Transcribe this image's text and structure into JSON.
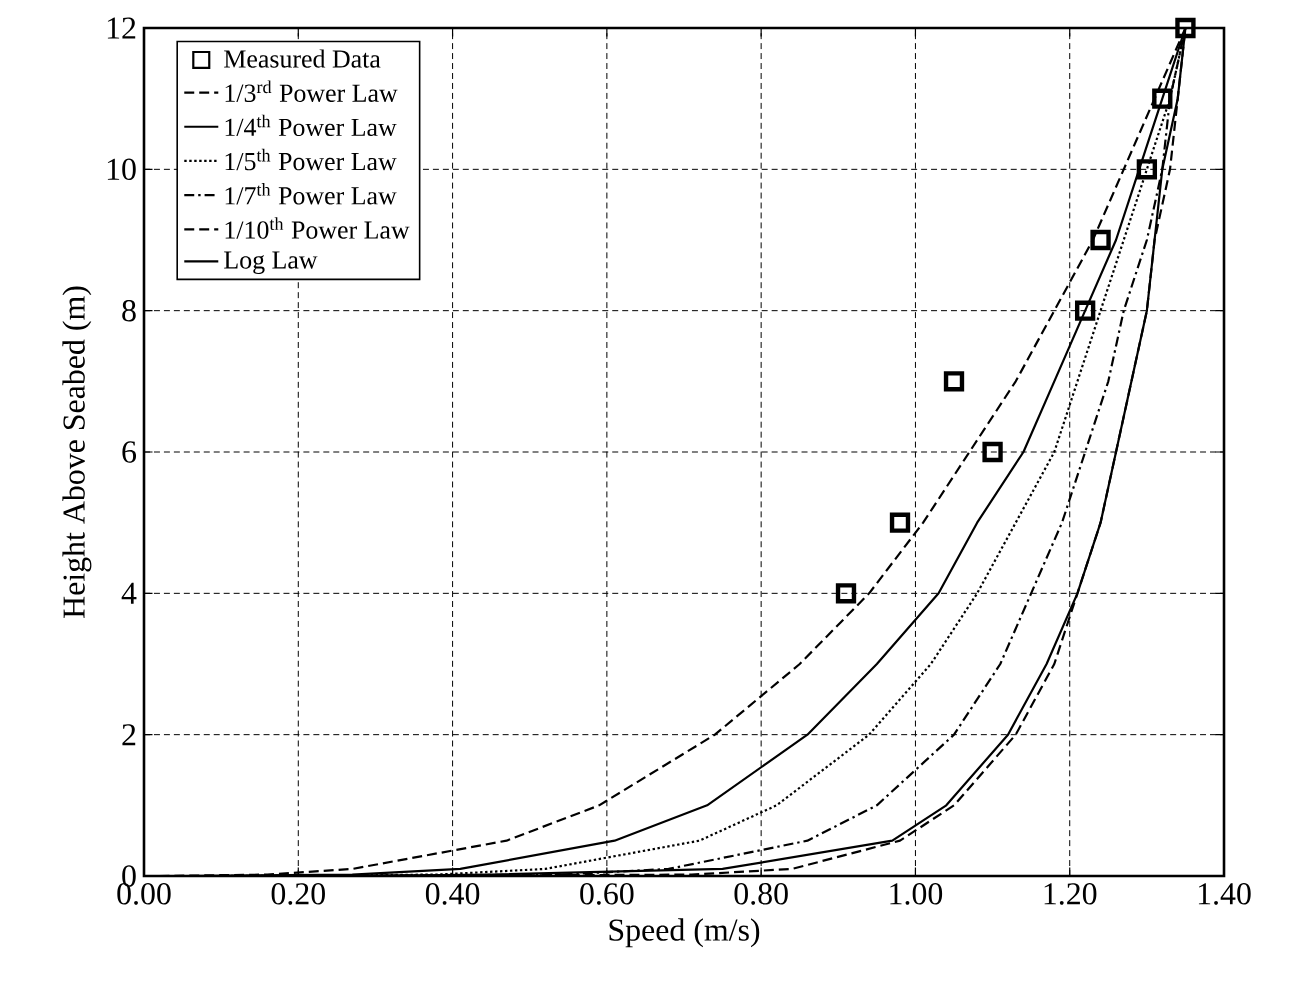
{
  "chart_data": {
    "type": "line",
    "xlabel": "Speed (m/s)",
    "ylabel": "Height Above Seabed (m)",
    "xlim": [
      0,
      1.4
    ],
    "ylim": [
      0,
      12
    ],
    "xticks": [
      {
        "value": 0,
        "label": "0.00"
      },
      {
        "value": 0.2,
        "label": "0.20"
      },
      {
        "value": 0.4,
        "label": "0.40"
      },
      {
        "value": 0.6,
        "label": "0.60"
      },
      {
        "value": 0.8,
        "label": "0.80"
      },
      {
        "value": 1.0,
        "label": "1.00"
      },
      {
        "value": 1.2,
        "label": "1.20"
      },
      {
        "value": 1.4,
        "label": "1.40"
      }
    ],
    "yticks": [
      0,
      2,
      4,
      6,
      8,
      10,
      12
    ],
    "grid": true,
    "legend": "top left",
    "series": [
      {
        "name": "Measured Data",
        "type": "scatter",
        "marker": "square",
        "color": "#000000",
        "x": [
          0.91,
          0.98,
          1.05,
          1.1,
          1.22,
          1.24,
          1.3,
          1.32,
          1.35
        ],
        "values": [
          4,
          5,
          7,
          6,
          8,
          9,
          10,
          11,
          12
        ]
      },
      {
        "name": "1/3$^{rd}$ Power Law",
        "line_style": "dashed",
        "color": "#000000",
        "x": [
          0.02,
          0.16,
          0.27,
          0.47,
          0.59,
          0.74,
          0.85,
          0.94,
          1.01,
          1.07,
          1.13,
          1.18,
          1.23,
          1.27,
          1.31,
          1.35
        ],
        "values": [
          0,
          0.02,
          0.1,
          0.5,
          1,
          2,
          3,
          4,
          5,
          6,
          7,
          8,
          9,
          10,
          11,
          12
        ]
      },
      {
        "name": "1/4$^{th}$ Power Law",
        "line_style": "solid",
        "color": "#000000",
        "x": [
          0.05,
          0.27,
          0.41,
          0.61,
          0.73,
          0.86,
          0.95,
          1.03,
          1.08,
          1.14,
          1.18,
          1.22,
          1.26,
          1.29,
          1.32,
          1.35
        ],
        "values": [
          0,
          0.02,
          0.1,
          0.5,
          1,
          2,
          3,
          4,
          5,
          6,
          7,
          8,
          9,
          10,
          11,
          12
        ]
      },
      {
        "name": "1/5$^{th}$ Power Law",
        "line_style": "dotted",
        "color": "#000000",
        "x": [
          0.1,
          0.38,
          0.52,
          0.72,
          0.82,
          0.94,
          1.02,
          1.08,
          1.13,
          1.18,
          1.21,
          1.24,
          1.27,
          1.3,
          1.33,
          1.35
        ],
        "values": [
          0,
          0.02,
          0.1,
          0.5,
          1,
          2,
          3,
          4,
          5,
          6,
          7,
          8,
          9,
          10,
          11,
          12
        ]
      },
      {
        "name": "1/7$^{th}$ Power Law",
        "line_style": "dashdot",
        "color": "#000000",
        "x": [
          0.2,
          0.54,
          0.68,
          0.86,
          0.95,
          1.05,
          1.11,
          1.15,
          1.19,
          1.22,
          1.25,
          1.27,
          1.3,
          1.32,
          1.33,
          1.35
        ],
        "values": [
          0,
          0.02,
          0.1,
          0.5,
          1,
          2,
          3,
          4,
          5,
          6,
          7,
          8,
          9,
          10,
          11,
          12
        ]
      },
      {
        "name": "1/10$^{th}$ Power Law",
        "line_style": "dashed",
        "color": "#000000",
        "x": [
          0.3,
          0.71,
          0.84,
          0.98,
          1.05,
          1.13,
          1.18,
          1.21,
          1.24,
          1.26,
          1.28,
          1.3,
          1.31,
          1.33,
          1.34,
          1.35
        ],
        "values": [
          0,
          0.02,
          0.1,
          0.5,
          1,
          2,
          3,
          4,
          5,
          6,
          7,
          8,
          9,
          10,
          11,
          12
        ]
      },
      {
        "name": "Log Law",
        "line_style": "solid",
        "color": "#000000",
        "x": [
          0.25,
          0.45,
          0.75,
          0.97,
          1.04,
          1.12,
          1.17,
          1.21,
          1.24,
          1.26,
          1.28,
          1.3,
          1.31,
          1.32,
          1.34,
          1.35
        ],
        "values": [
          0,
          0.02,
          0.1,
          0.5,
          1,
          2,
          3,
          4,
          5,
          6,
          7,
          8,
          9,
          10,
          11,
          12
        ]
      }
    ]
  }
}
